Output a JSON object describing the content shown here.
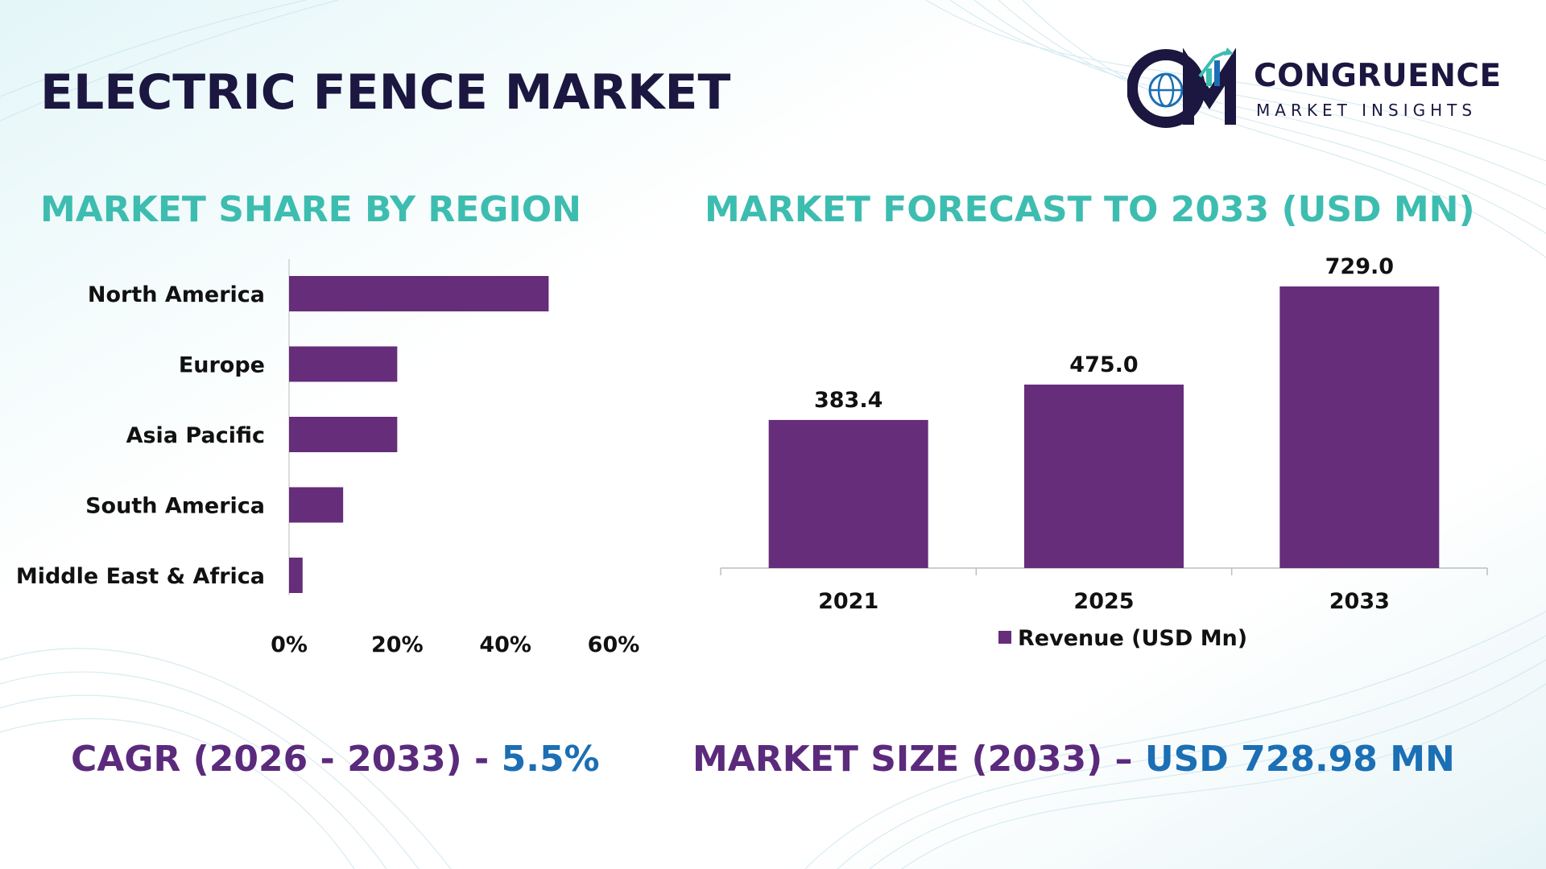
{
  "header": {
    "title": "ELECTRIC FENCE MARKET",
    "logo_name": "CONGRUENCE",
    "logo_tagline": "MARKET INSIGHTS"
  },
  "colors": {
    "bar": "#652d7a",
    "section_title": "#3dbdb0",
    "title": "#1b1740",
    "footer_label": "#5b2a7c",
    "footer_value": "#1b6fb4"
  },
  "left_section": {
    "title": "MARKET SHARE BY REGION"
  },
  "right_section": {
    "title": "MARKET FORECAST TO 2033 (USD MN)"
  },
  "chart_data": [
    {
      "type": "bar",
      "orientation": "horizontal",
      "title": "MARKET SHARE BY REGION",
      "categories": [
        "North America",
        "Europe",
        "Asia Pacific",
        "South America",
        "Middle East & Africa"
      ],
      "values": [
        48,
        20,
        20,
        10,
        2.5
      ],
      "x_ticks": [
        "0%",
        "20%",
        "40%",
        "60%"
      ],
      "xlim": [
        0,
        60
      ],
      "grid": false
    },
    {
      "type": "bar",
      "orientation": "vertical",
      "title": "MARKET FORECAST TO 2033 (USD MN)",
      "categories": [
        "2021",
        "2025",
        "2033"
      ],
      "series": [
        {
          "name": "Revenue (USD Mn)",
          "values": [
            383.4,
            475.0,
            729.0
          ]
        }
      ],
      "data_labels": [
        "383.4",
        "475.0",
        "729.0"
      ],
      "ylim": [
        0,
        800
      ],
      "legend": "bottom",
      "grid": false
    }
  ],
  "footer": {
    "cagr_label": "CAGR (2026 - 2033) - ",
    "cagr_value": "5.5%",
    "size_label": "MARKET SIZE (2033) – ",
    "size_value": "USD 728.98 MN"
  }
}
